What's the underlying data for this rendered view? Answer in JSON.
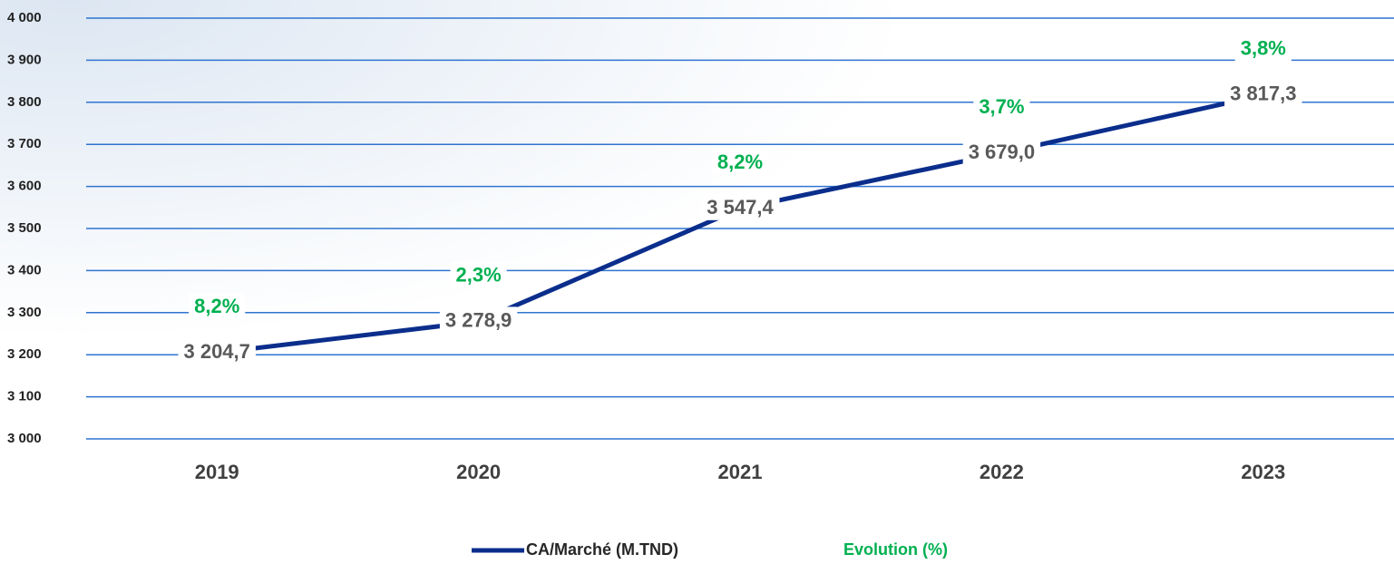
{
  "chart_data": {
    "type": "line",
    "categories": [
      "2019",
      "2020",
      "2021",
      "2022",
      "2023"
    ],
    "series": [
      {
        "name": "CA/Marché (M.TND)",
        "color": "#0b2e8c",
        "values": [
          3204.7,
          3278.9,
          3547.4,
          3679.0,
          3817.3
        ],
        "value_labels": [
          "3 204,7",
          "3 278,9",
          "3 547,4",
          "3 679,0",
          "3 817,3"
        ]
      },
      {
        "name": "Evolution (%)",
        "color": "#00b050",
        "values": [
          8.2,
          2.3,
          8.2,
          3.7,
          3.8
        ],
        "value_labels": [
          "8,2%",
          "2,3%",
          "8,2%",
          "3,7%",
          "3,8%"
        ]
      }
    ],
    "ylim": [
      3000,
      4000
    ],
    "yticks": [
      {
        "value": 3000,
        "label": "3 000"
      },
      {
        "value": 3100,
        "label": "3 100"
      },
      {
        "value": 3200,
        "label": "3 200"
      },
      {
        "value": 3300,
        "label": "3 300"
      },
      {
        "value": 3400,
        "label": "3 400"
      },
      {
        "value": 3500,
        "label": "3 500"
      },
      {
        "value": 3600,
        "label": "3 600"
      },
      {
        "value": 3700,
        "label": "3 700"
      },
      {
        "value": 3800,
        "label": "3 800"
      },
      {
        "value": 3900,
        "label": "3 900"
      },
      {
        "value": 4000,
        "label": "4 000"
      }
    ],
    "grid": true
  }
}
